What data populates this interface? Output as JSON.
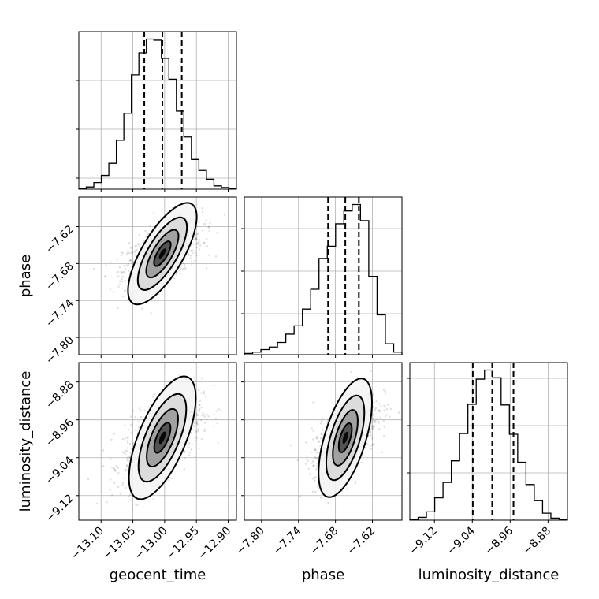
{
  "chart_data": {
    "type": "corner",
    "parameters": [
      "geocent_time",
      "phase",
      "luminosity_distance"
    ],
    "xlabels": {
      "geocent_time": "geocent_time",
      "phase": "phase",
      "luminosity_distance": "luminosity_distance"
    },
    "ylabels": {
      "phase": "phase",
      "luminosity_distance": "luminosity_distance"
    },
    "ranges": {
      "geocent_time": [
        -13.135,
        -12.887
      ],
      "phase": [
        -7.828,
        -7.572
      ],
      "luminosity_distance": [
        -9.172,
        -8.839
      ]
    },
    "ticks": {
      "geocent_time": [
        -13.1,
        -13.05,
        -13.0,
        -12.95,
        -12.9
      ],
      "phase": [
        -7.8,
        -7.74,
        -7.68,
        -7.62
      ],
      "luminosity_distance": [
        -9.12,
        -9.04,
        -8.96,
        -8.88
      ]
    },
    "tick_labels": {
      "geocent_time": [
        "−13.10",
        "−13.05",
        "−13.00",
        "−12.95",
        "−12.90"
      ],
      "phase": [
        "−7.80",
        "−7.74",
        "−7.68",
        "−7.62"
      ],
      "luminosity_distance": [
        "−9.12",
        "−9.04",
        "−8.96",
        "−8.88"
      ]
    },
    "grid": true,
    "histograms": {
      "geocent_time": {
        "counts": [
          0.2,
          0.8,
          2.4,
          5.0,
          9.4,
          17.8,
          27.6,
          41.6,
          49.6,
          54.6,
          54.2,
          47.6,
          40.0,
          28.4,
          19.0,
          10.8,
          6.8,
          3.6,
          1.2,
          0.6,
          0.2
        ],
        "quantiles": [
          -13.032,
          -13.0035,
          -12.973
        ]
      },
      "phase": {
        "counts": [
          0.4,
          0.8,
          1.6,
          2.4,
          3.8,
          6.4,
          9.0,
          14.2,
          20.4,
          30.0,
          33.8,
          40.8,
          44.8,
          46.8,
          41.8,
          24.4,
          12.4,
          3.4,
          0.8
        ],
        "quantiles": [
          -7.692,
          -7.664,
          -7.642
        ]
      },
      "luminosity_distance": {
        "counts": [
          0.2,
          0.8,
          2.4,
          6.4,
          10.8,
          17.0,
          24.8,
          33.2,
          40.4,
          43.0,
          40.8,
          33.0,
          24.6,
          16.6,
          10.2,
          5.6,
          2.0,
          0.6,
          0.2
        ],
        "quantiles": [
          -9.039,
          -8.998,
          -8.953
        ]
      }
    },
    "correlations": {
      "phase|geocent_time": 0.55,
      "luminosity_distance|geocent_time": 0.55,
      "luminosity_distance|phase": 0.6
    }
  }
}
